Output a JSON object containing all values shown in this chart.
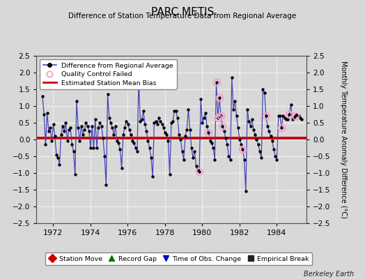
{
  "title": "PARC METIS",
  "subtitle": "Difference of Station Temperature Data from Regional Average",
  "ylabel": "Monthly Temperature Anomaly Difference (°C)",
  "xlabel_years": [
    1972,
    1974,
    1976,
    1978,
    1980,
    1982,
    1984
  ],
  "ylim": [
    -2.5,
    2.5
  ],
  "yticks": [
    -2.5,
    -2,
    -1.5,
    -1,
    -0.5,
    0,
    0.5,
    1,
    1.5,
    2,
    2.5
  ],
  "bias": 0.05,
  "background_color": "#d8d8d8",
  "plot_bg_color": "#d8d8d8",
  "line_color": "#4444bb",
  "marker_color": "#000000",
  "bias_color": "#cc0000",
  "qc_color": "#ff99cc",
  "watermark": "Berkeley Earth",
  "start_year": 1971.1,
  "end_year": 1985.6,
  "data": [
    1.3,
    0.75,
    -0.15,
    0.8,
    0.25,
    0.35,
    -0.05,
    0.45,
    0.1,
    -0.45,
    -0.55,
    -0.75,
    0.15,
    0.4,
    0.25,
    0.5,
    -0.05,
    0.3,
    0.35,
    -0.15,
    -0.35,
    -1.05,
    1.15,
    0.35,
    -0.05,
    0.4,
    0.15,
    0.3,
    0.5,
    0.4,
    0.25,
    -0.25,
    0.4,
    -0.25,
    0.6,
    -0.25,
    0.35,
    0.5,
    0.4,
    0.05,
    -0.5,
    -1.35,
    1.35,
    0.65,
    0.5,
    0.35,
    0.15,
    0.4,
    -0.05,
    -0.1,
    -0.3,
    -0.85,
    0.15,
    0.35,
    0.55,
    0.45,
    0.3,
    0.15,
    -0.05,
    -0.1,
    -0.25,
    -0.35,
    1.78,
    0.55,
    0.6,
    0.85,
    0.45,
    0.25,
    -0.05,
    -0.25,
    -0.55,
    -1.1,
    0.5,
    0.55,
    0.45,
    0.65,
    0.55,
    0.45,
    0.35,
    0.2,
    0.15,
    -0.05,
    -1.05,
    0.5,
    0.55,
    0.85,
    0.85,
    0.65,
    0.15,
    0.0,
    -0.35,
    -0.6,
    0.1,
    0.3,
    0.9,
    0.3,
    -0.25,
    -0.55,
    -0.35,
    -0.8,
    -0.9,
    -0.95,
    1.2,
    0.5,
    0.65,
    0.8,
    0.4,
    0.2,
    -0.05,
    -0.1,
    -0.25,
    -0.6,
    1.7,
    0.65,
    1.25,
    0.7,
    0.4,
    0.25,
    0.05,
    -0.15,
    -0.5,
    -0.6,
    1.85,
    0.9,
    1.15,
    0.7,
    0.35,
    0.0,
    -0.15,
    -0.3,
    -0.6,
    -1.55,
    0.9,
    0.55,
    0.4,
    0.6,
    0.3,
    0.15,
    0.0,
    -0.15,
    -0.35,
    -0.55,
    1.5,
    1.4,
    0.7,
    0.4,
    0.25,
    0.1,
    -0.05,
    -0.3,
    -0.5,
    -0.6,
    0.7,
    0.7,
    0.35,
    0.7,
    0.65,
    0.6,
    0.6,
    0.75,
    1.05,
    0.6,
    0.65,
    0.7,
    0.75,
    0.7,
    0.65,
    0.6
  ],
  "qc_indices": [
    62,
    101,
    107,
    112,
    113,
    114,
    115,
    116,
    129,
    144,
    154,
    159,
    163
  ],
  "legend_items": [
    {
      "label": "Difference from Regional Average",
      "color": "#4444bb",
      "type": "line"
    },
    {
      "label": "Quality Control Failed",
      "color": "#ff99cc",
      "type": "circle"
    },
    {
      "label": "Estimated Station Mean Bias",
      "color": "#cc0000",
      "type": "line"
    }
  ],
  "bottom_legend": [
    {
      "label": "Station Move",
      "color": "#cc0000",
      "marker": "D"
    },
    {
      "label": "Record Gap",
      "color": "#007700",
      "marker": "^"
    },
    {
      "label": "Time of Obs. Change",
      "color": "#0000cc",
      "marker": "v"
    },
    {
      "label": "Empirical Break",
      "color": "#222222",
      "marker": "s"
    }
  ]
}
